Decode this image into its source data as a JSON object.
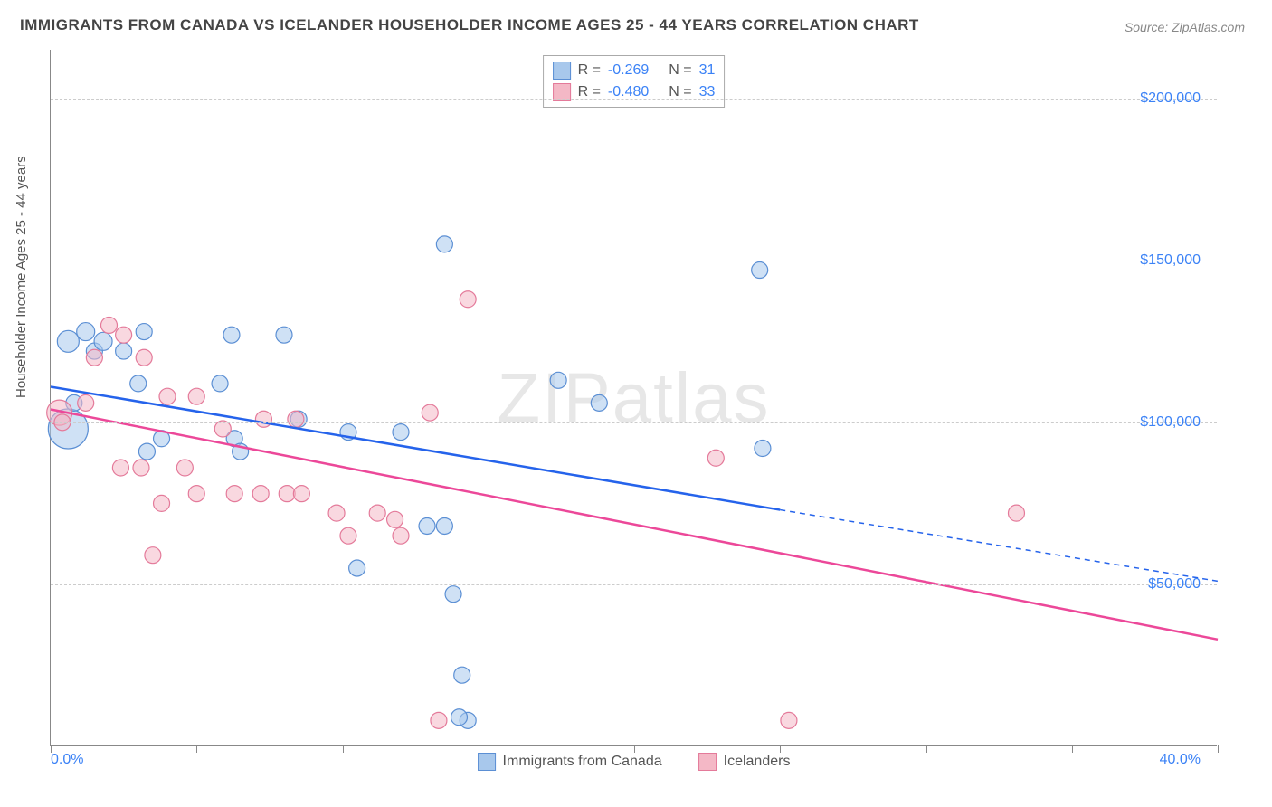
{
  "title": "IMMIGRANTS FROM CANADA VS ICELANDER HOUSEHOLDER INCOME AGES 25 - 44 YEARS CORRELATION CHART",
  "source": "Source: ZipAtlas.com",
  "watermark": "ZIPatlas",
  "chart": {
    "type": "scatter",
    "background_color": "#ffffff",
    "grid_color": "#cccccc",
    "axis_color": "#888888",
    "y_axis_title": "Householder Income Ages 25 - 44 years",
    "y_axis_title_fontsize": 15,
    "x_range_pct": [
      0,
      40
    ],
    "y_range_dollars": [
      0,
      215000
    ],
    "x_min_label": "0.0%",
    "x_max_label": "40.0%",
    "y_ticks": [
      {
        "value": 50000,
        "label": "$50,000"
      },
      {
        "value": 100000,
        "label": "$100,000"
      },
      {
        "value": 150000,
        "label": "$150,000"
      },
      {
        "value": 200000,
        "label": "$200,000"
      }
    ],
    "x_tick_positions_pct": [
      0,
      5,
      10,
      15,
      20,
      25,
      30,
      35,
      40
    ],
    "series": [
      {
        "name": "Immigrants from Canada",
        "fill_color": "#a8c8ec",
        "stroke_color": "#5b8fd4",
        "fill_opacity": 0.55,
        "marker_radius": 9,
        "R": "-0.269",
        "N": "31",
        "regression": {
          "x1_pct": 0,
          "y1_dollars": 111000,
          "x2_pct": 25,
          "y2_dollars": 73000,
          "color": "#2563eb",
          "width": 2.5,
          "dashed_extension": {
            "x2_pct": 40,
            "y2_dollars": 51000
          }
        },
        "points_pct_dollars": [
          [
            0.6,
            98000,
            22
          ],
          [
            0.6,
            125000,
            12
          ],
          [
            1.2,
            128000,
            10
          ],
          [
            1.5,
            122000,
            9
          ],
          [
            1.8,
            125000,
            10
          ],
          [
            0.8,
            106000,
            9
          ],
          [
            2.5,
            122000,
            9
          ],
          [
            3.0,
            112000,
            9
          ],
          [
            3.2,
            128000,
            9
          ],
          [
            3.3,
            91000,
            9
          ],
          [
            3.8,
            95000,
            9
          ],
          [
            5.8,
            112000,
            9
          ],
          [
            6.2,
            127000,
            9
          ],
          [
            6.3,
            95000,
            9
          ],
          [
            6.5,
            91000,
            9
          ],
          [
            8.0,
            127000,
            9
          ],
          [
            8.5,
            101000,
            9
          ],
          [
            10.2,
            97000,
            9
          ],
          [
            10.5,
            55000,
            9
          ],
          [
            12.0,
            97000,
            9
          ],
          [
            12.9,
            68000,
            9
          ],
          [
            13.5,
            68000,
            9
          ],
          [
            13.5,
            155000,
            9
          ],
          [
            13.8,
            47000,
            9
          ],
          [
            14.1,
            22000,
            9
          ],
          [
            14.3,
            8000,
            9
          ],
          [
            17.4,
            113000,
            9
          ],
          [
            18.8,
            106000,
            9
          ],
          [
            24.3,
            147000,
            9
          ],
          [
            24.4,
            92000,
            9
          ],
          [
            14.0,
            9000,
            9
          ]
        ]
      },
      {
        "name": "Icelanders",
        "fill_color": "#f4b8c6",
        "stroke_color": "#e47a9a",
        "fill_opacity": 0.55,
        "marker_radius": 9,
        "R": "-0.480",
        "N": "33",
        "regression": {
          "x1_pct": 0,
          "y1_dollars": 104000,
          "x2_pct": 40,
          "y2_dollars": 33000,
          "color": "#ec4899",
          "width": 2.5
        },
        "points_pct_dollars": [
          [
            0.3,
            103000,
            14
          ],
          [
            0.4,
            100000,
            9
          ],
          [
            1.2,
            106000,
            9
          ],
          [
            1.5,
            120000,
            9
          ],
          [
            2.0,
            130000,
            9
          ],
          [
            2.4,
            86000,
            9
          ],
          [
            2.5,
            127000,
            9
          ],
          [
            3.2,
            120000,
            9
          ],
          [
            3.1,
            86000,
            9
          ],
          [
            3.5,
            59000,
            9
          ],
          [
            3.8,
            75000,
            9
          ],
          [
            4.0,
            108000,
            9
          ],
          [
            4.6,
            86000,
            9
          ],
          [
            5.0,
            78000,
            9
          ],
          [
            5.0,
            108000,
            9
          ],
          [
            6.3,
            78000,
            9
          ],
          [
            7.2,
            78000,
            9
          ],
          [
            7.3,
            101000,
            9
          ],
          [
            8.1,
            78000,
            9
          ],
          [
            8.4,
            101000,
            9
          ],
          [
            8.6,
            78000,
            9
          ],
          [
            9.8,
            72000,
            9
          ],
          [
            10.2,
            65000,
            9
          ],
          [
            11.2,
            72000,
            9
          ],
          [
            12.0,
            65000,
            9
          ],
          [
            13.0,
            103000,
            9
          ],
          [
            14.3,
            138000,
            9
          ],
          [
            13.3,
            8000,
            9
          ],
          [
            22.8,
            89000,
            9
          ],
          [
            25.3,
            8000,
            9
          ],
          [
            33.1,
            72000,
            9
          ],
          [
            11.8,
            70000,
            9
          ],
          [
            5.9,
            98000,
            9
          ]
        ]
      }
    ]
  }
}
